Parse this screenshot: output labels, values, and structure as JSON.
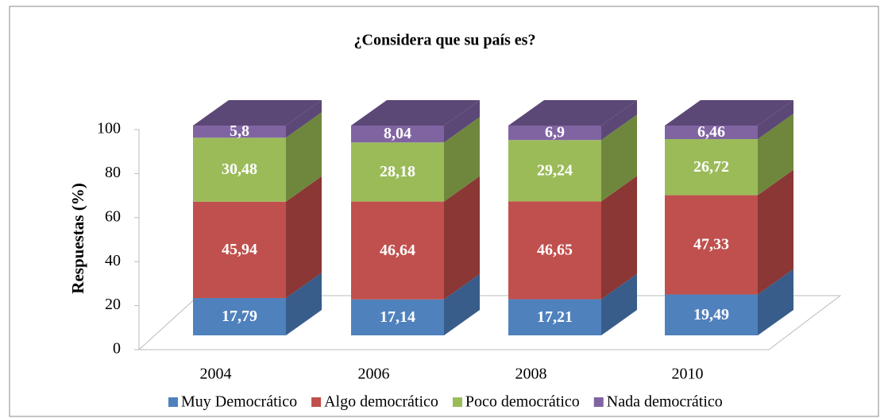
{
  "chart_data": {
    "type": "bar3d_stacked",
    "title": "¿Considera que su país es?",
    "y_label": "Respuestas (%)",
    "categories": [
      "2004",
      "2006",
      "2008",
      "2010"
    ],
    "series": [
      {
        "name": "Muy Democrático",
        "color": "#4f81bd",
        "side": "#385d8a",
        "values": [
          17.79,
          17.14,
          17.21,
          19.49
        ],
        "value_labels": [
          "17,79",
          "17,14",
          "17,21",
          "19,49"
        ]
      },
      {
        "name": "Algo democrático",
        "color": "#c0504d",
        "side": "#8a3735",
        "values": [
          45.94,
          46.64,
          46.65,
          47.33
        ],
        "value_labels": [
          "45,94",
          "46,64",
          "46,65",
          "47,33"
        ]
      },
      {
        "name": "Poco democrático",
        "color": "#9bbb59",
        "side": "#6f873d",
        "values": [
          30.48,
          28.18,
          29.24,
          26.72
        ],
        "value_labels": [
          "30,48",
          "28,18",
          "29,24",
          "26,72"
        ]
      },
      {
        "name": "Nada democrático",
        "color": "#8064a2",
        "side": "#5c4876",
        "values": [
          5.8,
          8.04,
          6.9,
          6.46
        ],
        "value_labels": [
          "5,8",
          "8,04",
          "6,9",
          "6,46"
        ]
      }
    ],
    "ylim": [
      0,
      100
    ],
    "yticks": [
      0,
      20,
      40,
      60,
      80,
      100
    ],
    "legend": "bottom"
  }
}
